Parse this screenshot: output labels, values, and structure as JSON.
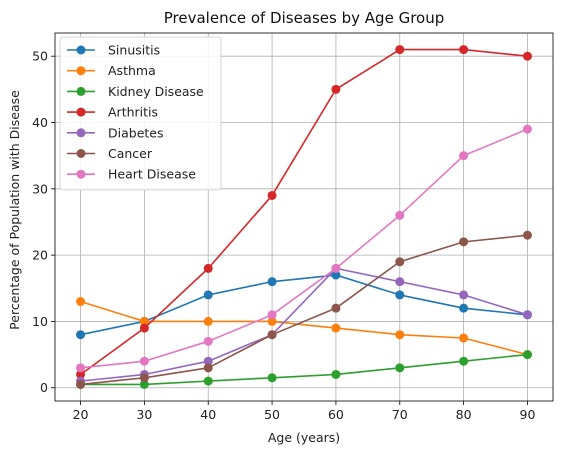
{
  "chart_data": {
    "type": "line",
    "title": "Prevalence of Diseases by Age Group",
    "xlabel": "Age (years)",
    "ylabel": "Percentage of Population with Disease",
    "x": [
      20,
      30,
      40,
      50,
      60,
      70,
      80,
      90
    ],
    "xticks": [
      20,
      30,
      40,
      50,
      60,
      70,
      80,
      90
    ],
    "yticks": [
      0,
      10,
      20,
      30,
      40,
      50
    ],
    "xlim": [
      16,
      94
    ],
    "ylim": [
      -2,
      53.5
    ],
    "grid": true,
    "legend_position": "upper-left",
    "series": [
      {
        "name": "Sinusitis",
        "color": "#1f77b4",
        "values": [
          8,
          10,
          14,
          16,
          17,
          14,
          12,
          11
        ]
      },
      {
        "name": "Asthma",
        "color": "#ff7f0e",
        "values": [
          13,
          10,
          10,
          10,
          9,
          8,
          7.5,
          5
        ]
      },
      {
        "name": "Kidney Disease",
        "color": "#2ca02c",
        "values": [
          0.5,
          0.5,
          1,
          1.5,
          2,
          3,
          4,
          5
        ]
      },
      {
        "name": "Arthritis",
        "color": "#d62728",
        "values": [
          2,
          9,
          18,
          29,
          45,
          51,
          51,
          50
        ]
      },
      {
        "name": "Diabetes",
        "color": "#9467bd",
        "values": [
          1,
          2,
          4,
          8,
          18,
          16,
          14,
          11
        ]
      },
      {
        "name": "Cancer",
        "color": "#8c564b",
        "values": [
          0.5,
          1.5,
          3,
          8,
          12,
          19,
          22,
          23
        ]
      },
      {
        "name": "Heart Disease",
        "color": "#e377c2",
        "values": [
          3,
          4,
          7,
          11,
          18,
          26,
          35,
          39
        ]
      }
    ]
  }
}
